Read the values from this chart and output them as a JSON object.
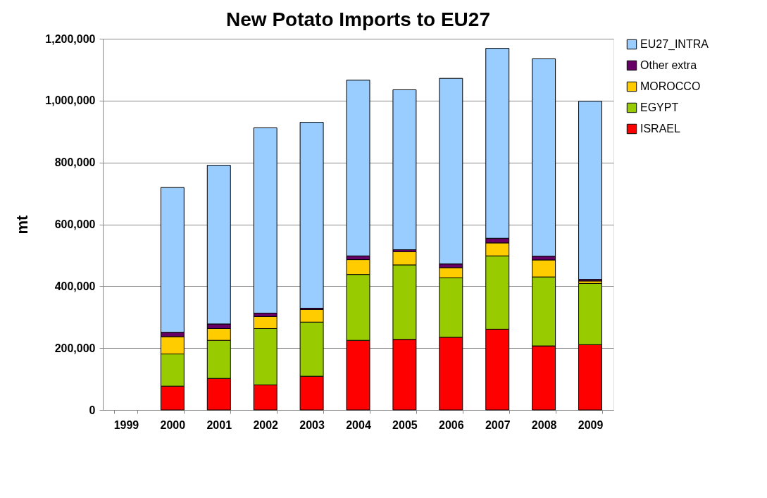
{
  "chart_data": {
    "type": "bar",
    "title": "New Potato Imports to EU27",
    "ylabel": "mt",
    "stacked": true,
    "categories": [
      "1999",
      "2000",
      "2001",
      "2002",
      "2003",
      "2004",
      "2005",
      "2006",
      "2007",
      "2008",
      "2009"
    ],
    "series": [
      {
        "name": "ISRAEL",
        "color": "#ff0000",
        "values": [
          null,
          77000,
          102000,
          81000,
          109000,
          225000,
          228000,
          235000,
          261000,
          207000,
          211000
        ]
      },
      {
        "name": "EGYPT",
        "color": "#99cc00",
        "values": [
          null,
          104000,
          123000,
          182000,
          175000,
          213000,
          241000,
          192000,
          237000,
          223000,
          198000
        ]
      },
      {
        "name": "MOROCCO",
        "color": "#ffcc00",
        "values": [
          null,
          56000,
          38000,
          39000,
          41000,
          48000,
          43000,
          33000,
          42000,
          55000,
          8000
        ]
      },
      {
        "name": "Other extra",
        "color": "#660066",
        "values": [
          null,
          14000,
          15000,
          11000,
          4000,
          12000,
          6000,
          12000,
          15000,
          12000,
          5000
        ]
      },
      {
        "name": "EU27_INTRA",
        "color": "#99ccff",
        "values": [
          null,
          468000,
          513000,
          599000,
          601000,
          568000,
          517000,
          600000,
          614000,
          638000,
          576000
        ]
      }
    ],
    "ylim": [
      0,
      1200000
    ],
    "yticks": [
      0,
      {
        "value": 200000,
        "label": "200,000"
      },
      {
        "value": 400000,
        "label": "400,000"
      },
      {
        "value": 600000,
        "label": "600,000"
      },
      {
        "value": 800000,
        "label": "800,000"
      },
      {
        "value": 1000000,
        "label": "1,000,000"
      },
      {
        "value": 1200000,
        "label": "1,200,000"
      }
    ],
    "grid": "y",
    "legend": "right"
  }
}
